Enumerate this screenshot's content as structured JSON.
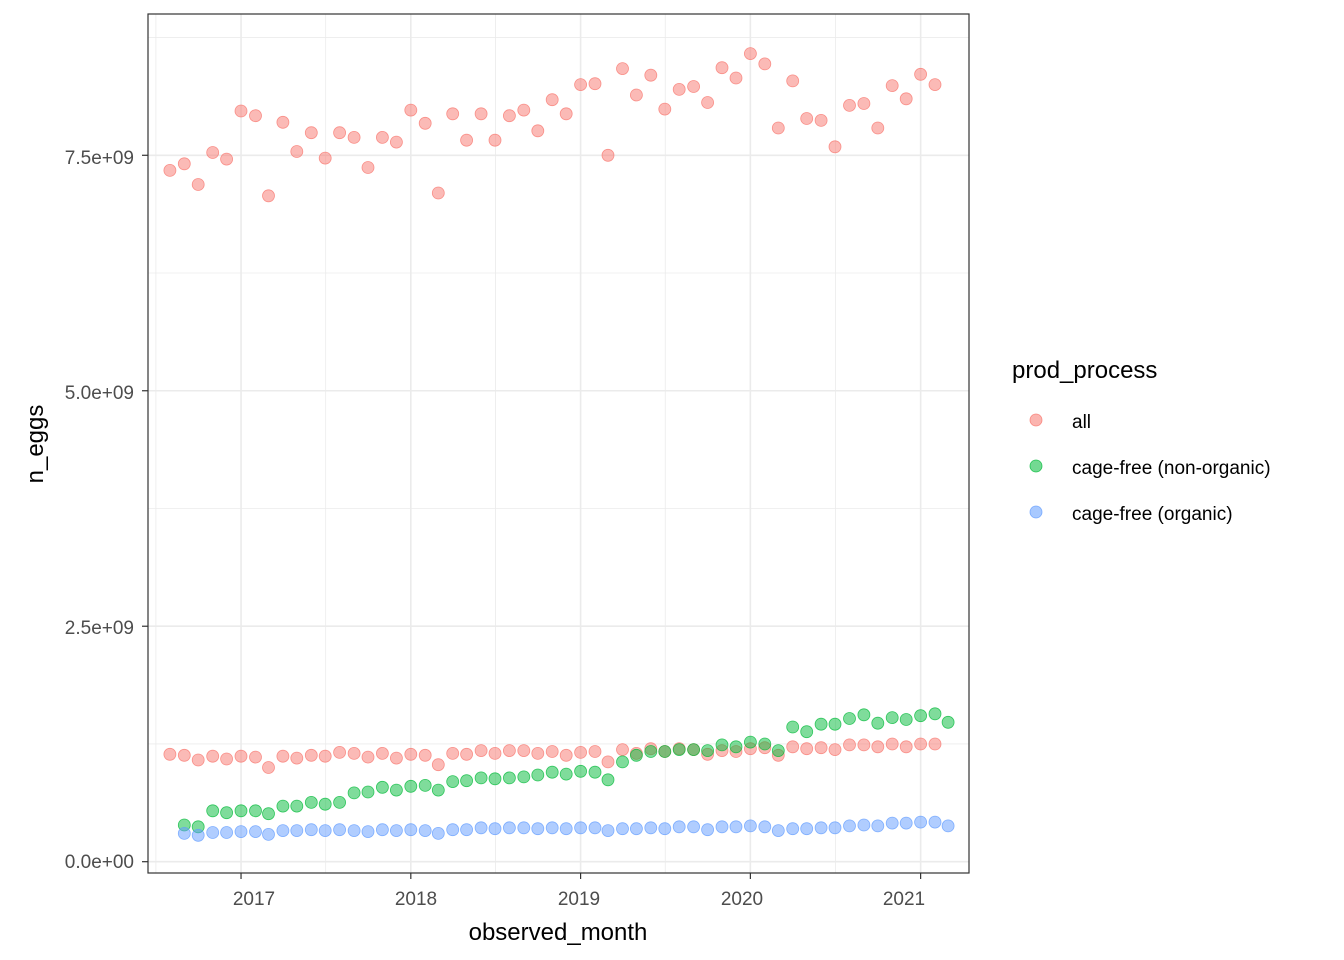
{
  "chart_data": {
    "type": "scatter",
    "xlabel": "observed_month",
    "ylabel": "n_eggs",
    "x_ticks": [
      "2017",
      "2018",
      "2019",
      "2020",
      "2021"
    ],
    "y_ticks": [
      "0.0e+00",
      "2.5e+09",
      "5.0e+09",
      "7.5e+09"
    ],
    "xlim": [
      "2016-06-15",
      "2021-04-15"
    ],
    "ylim": [
      -120000000,
      9000000000
    ],
    "grid": true,
    "legend_position": "right",
    "legend_title": "prod_process",
    "x": [
      "2016-08-01",
      "2016-09-01",
      "2016-10-01",
      "2016-11-01",
      "2016-12-01",
      "2017-01-01",
      "2017-02-01",
      "2017-03-01",
      "2017-04-01",
      "2017-05-01",
      "2017-06-01",
      "2017-07-01",
      "2017-08-01",
      "2017-09-01",
      "2017-10-01",
      "2017-11-01",
      "2017-12-01",
      "2018-01-01",
      "2018-02-01",
      "2018-03-01",
      "2018-04-01",
      "2018-05-01",
      "2018-06-01",
      "2018-07-01",
      "2018-08-01",
      "2018-09-01",
      "2018-10-01",
      "2018-11-01",
      "2018-12-01",
      "2019-01-01",
      "2019-02-01",
      "2019-03-01",
      "2019-04-01",
      "2019-05-01",
      "2019-06-01",
      "2019-07-01",
      "2019-08-01",
      "2019-09-01",
      "2019-10-01",
      "2019-11-01",
      "2019-12-01",
      "2020-01-01",
      "2020-02-01",
      "2020-03-01",
      "2020-04-01",
      "2020-05-01",
      "2020-06-01",
      "2020-07-01",
      "2020-08-01",
      "2020-09-01",
      "2020-10-01",
      "2020-11-01",
      "2020-12-01",
      "2021-01-01",
      "2021-02-01",
      "2021-03-01"
    ],
    "series": [
      {
        "name": "all",
        "color": "#F8766D",
        "groups": [
          [
            7340000000,
            7410000000,
            7190000000,
            7530000000,
            7460000000,
            7970000000,
            7920000000,
            7070000000,
            7850000000,
            7540000000,
            7740000000,
            7470000000,
            7740000000,
            7690000000,
            7370000000,
            7690000000,
            7640000000,
            7980000000,
            7840000000,
            7100000000,
            7940000000,
            7660000000,
            7940000000,
            7660000000,
            7920000000,
            7980000000,
            7760000000,
            8090000000,
            7940000000,
            8250000000,
            8260000000,
            7500000000,
            8420000000,
            8140000000,
            8350000000,
            7990000000,
            8200000000,
            8230000000,
            8060000000,
            8430000000,
            8320000000,
            8580000000,
            8470000000,
            7790000000,
            8290000000,
            7890000000,
            7870000000,
            7590000000,
            8030000000,
            8050000000,
            7790000000,
            8240000000,
            8100000000,
            8360000000,
            8250000000,
            null
          ],
          [
            1140000000,
            1130000000,
            1080000000,
            1120000000,
            1090000000,
            1120000000,
            1110000000,
            1000000000,
            1120000000,
            1100000000,
            1130000000,
            1120000000,
            1160000000,
            1150000000,
            1110000000,
            1150000000,
            1100000000,
            1140000000,
            1130000000,
            1030000000,
            1150000000,
            1140000000,
            1180000000,
            1150000000,
            1180000000,
            1180000000,
            1150000000,
            1170000000,
            1130000000,
            1160000000,
            1170000000,
            1060000000,
            1190000000,
            1150000000,
            1200000000,
            1170000000,
            1200000000,
            1190000000,
            1140000000,
            1180000000,
            1170000000,
            1200000000,
            1210000000,
            1130000000,
            1220000000,
            1200000000,
            1210000000,
            1190000000,
            1240000000,
            1240000000,
            1220000000,
            1250000000,
            1220000000,
            1250000000,
            1250000000,
            null
          ]
        ]
      },
      {
        "name": "cage-free (non-organic)",
        "color": "#00BA38",
        "groups": [
          [
            null,
            390000000,
            370000000,
            540000000,
            520000000,
            540000000,
            540000000,
            510000000,
            590000000,
            590000000,
            630000000,
            610000000,
            630000000,
            730000000,
            740000000,
            790000000,
            760000000,
            800000000,
            810000000,
            760000000,
            850000000,
            860000000,
            890000000,
            880000000,
            890000000,
            900000000,
            920000000,
            950000000,
            930000000,
            960000000,
            950000000,
            870000000,
            1060000000,
            1130000000,
            1170000000,
            1170000000,
            1190000000,
            1190000000,
            1180000000,
            1240000000,
            1220000000,
            1270000000,
            1250000000,
            1180000000,
            1430000000,
            1380000000,
            1460000000,
            1460000000,
            1520000000,
            1560000000,
            1470000000,
            1530000000,
            1510000000,
            1550000000,
            1570000000,
            1480000000
          ]
        ]
      },
      {
        "name": "cage-free (organic)",
        "color": "#619CFF",
        "groups": [
          [
            null,
            300000000,
            280000000,
            310000000,
            310000000,
            320000000,
            320000000,
            290000000,
            330000000,
            330000000,
            340000000,
            330000000,
            340000000,
            330000000,
            320000000,
            340000000,
            330000000,
            340000000,
            330000000,
            300000000,
            340000000,
            340000000,
            360000000,
            350000000,
            360000000,
            360000000,
            350000000,
            360000000,
            350000000,
            360000000,
            360000000,
            330000000,
            350000000,
            350000000,
            360000000,
            350000000,
            370000000,
            370000000,
            340000000,
            370000000,
            370000000,
            380000000,
            370000000,
            330000000,
            350000000,
            350000000,
            360000000,
            360000000,
            380000000,
            390000000,
            380000000,
            410000000,
            410000000,
            420000000,
            420000000,
            380000000
          ]
        ]
      }
    ]
  }
}
